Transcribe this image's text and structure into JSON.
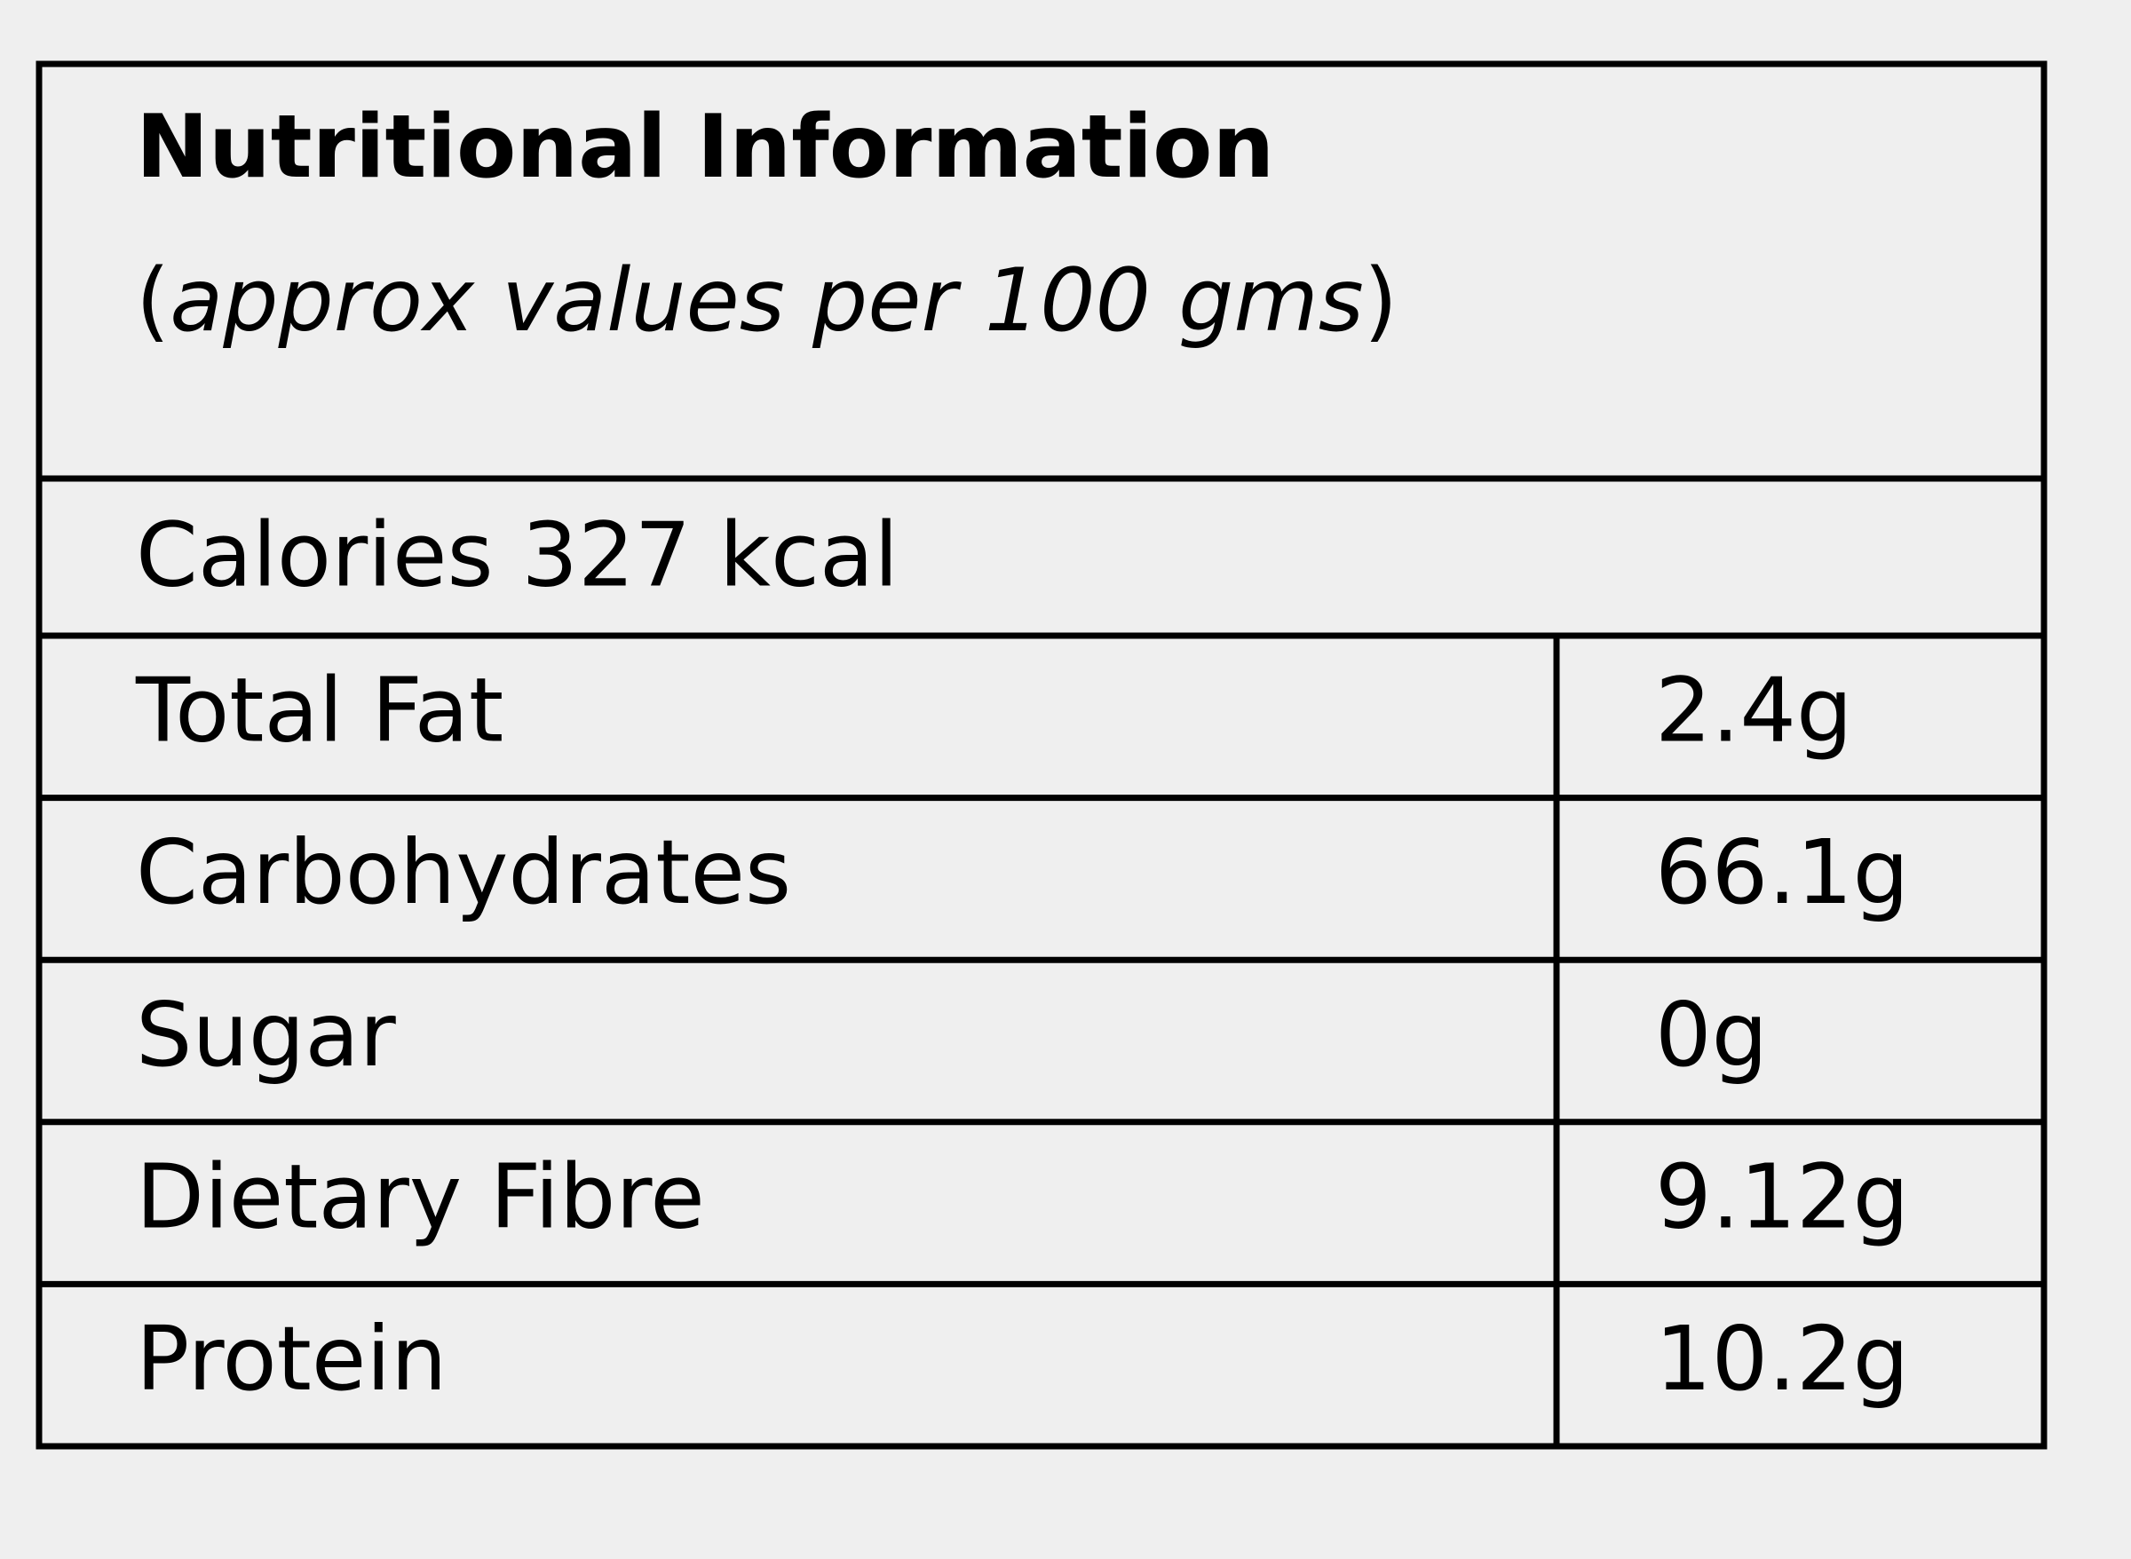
{
  "table": {
    "title": "Nutritional Information",
    "subtitle": [
      "(",
      "approx values per 100 gms",
      ")"
    ],
    "calories": "Calories 327 kcal",
    "rows": [
      [
        "Total Fat",
        "2.4g"
      ],
      [
        "Carbohydrates",
        "66.1g"
      ],
      [
        "Sugar",
        "0g"
      ],
      [
        "Dietary Fibre",
        "9.12g"
      ],
      [
        "Protein",
        "10.2g"
      ]
    ]
  }
}
